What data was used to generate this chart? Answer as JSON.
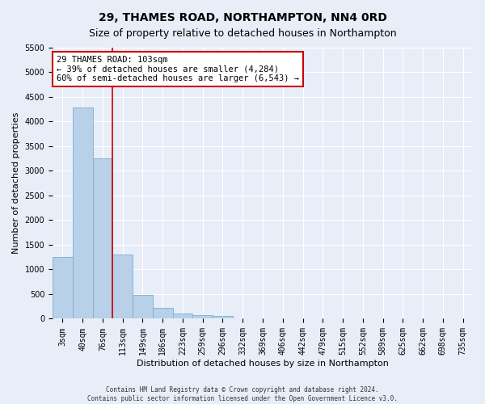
{
  "title": "29, THAMES ROAD, NORTHAMPTON, NN4 0RD",
  "subtitle": "Size of property relative to detached houses in Northampton",
  "xlabel": "Distribution of detached houses by size in Northampton",
  "ylabel": "Number of detached properties",
  "footer_line1": "Contains HM Land Registry data © Crown copyright and database right 2024.",
  "footer_line2": "Contains public sector information licensed under the Open Government Licence v3.0.",
  "bar_color": "#b8d0e8",
  "bar_edge_color": "#7aafd4",
  "vline_color": "#cc0000",
  "annotation_text": "29 THAMES ROAD: 103sqm\n← 39% of detached houses are smaller (4,284)\n60% of semi-detached houses are larger (6,543) →",
  "annotation_box_color": "#ffffff",
  "annotation_box_edge_color": "#cc0000",
  "ylim": [
    0,
    5500
  ],
  "categories": [
    "3sqm",
    "40sqm",
    "76sqm",
    "113sqm",
    "149sqm",
    "186sqm",
    "223sqm",
    "259sqm",
    "296sqm",
    "332sqm",
    "369sqm",
    "406sqm",
    "442sqm",
    "479sqm",
    "515sqm",
    "552sqm",
    "589sqm",
    "625sqm",
    "662sqm",
    "698sqm",
    "735sqm"
  ],
  "values": [
    1250,
    4280,
    3250,
    1300,
    490,
    220,
    100,
    80,
    50,
    0,
    0,
    0,
    0,
    0,
    0,
    0,
    0,
    0,
    0,
    0,
    0
  ],
  "vline_bar_index": 2,
  "background_color": "#e8eef8",
  "grid_color": "#ffffff",
  "title_fontsize": 10,
  "subtitle_fontsize": 9,
  "tick_fontsize": 7,
  "ylabel_fontsize": 8,
  "xlabel_fontsize": 8,
  "annotation_fontsize": 7.5
}
